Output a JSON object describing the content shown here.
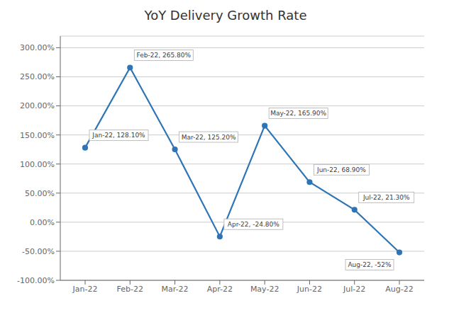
{
  "chart_data": {
    "type": "line",
    "title": "YoY Delivery Growth Rate",
    "categories": [
      "Jan-22",
      "Feb-22",
      "Mar-22",
      "Apr-22",
      "May-22",
      "Jun-22",
      "Jul-22",
      "Aug-22"
    ],
    "values": [
      128.1,
      265.8,
      125.2,
      -24.8,
      165.9,
      68.9,
      21.3,
      -52.0
    ],
    "value_labels": [
      "Jan-22, 128.10%",
      "Feb-22, 265.80%",
      "Mar-22, 125.20%",
      "Apr-22, -24.80%",
      "May-22, 165.90%",
      "Jun-22, 68.90%",
      "Jul-22, 21.30%",
      "Aug-22, -52%"
    ],
    "data_labels": true,
    "color": "#2E75B6",
    "marker": "circle",
    "ylim": [
      -100,
      320
    ],
    "yticks": [
      {
        "value": -100,
        "label": "-100.00%"
      },
      {
        "value": -50,
        "label": "-50.00%"
      },
      {
        "value": 0,
        "label": "0.00%"
      },
      {
        "value": 50,
        "label": "50.00%"
      },
      {
        "value": 100,
        "label": "100.00%"
      },
      {
        "value": 150,
        "label": "150.00%"
      },
      {
        "value": 200,
        "label": "200.00%"
      },
      {
        "value": 250,
        "label": "250.00%"
      },
      {
        "value": 300,
        "label": "300.00%"
      }
    ],
    "grid": true
  }
}
